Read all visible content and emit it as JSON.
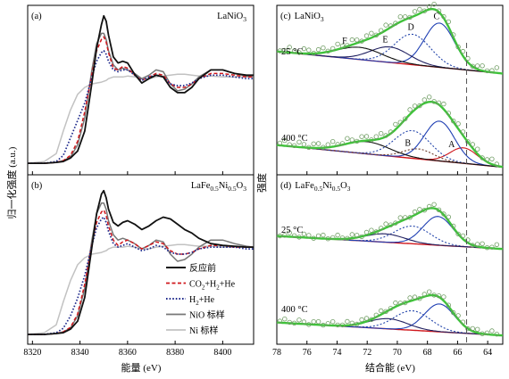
{
  "colors": {
    "fresh": "#111111",
    "co2": "#d0171c",
    "h2": "#1f2a8c",
    "nio": "#777777",
    "ni_std": "#c2c2c2",
    "fit_total": "#3fc23a",
    "baseline": "#d0171c",
    "peak_A": "#d0171c",
    "peak_B": "#6a3b2a",
    "peak_C": "#1f3fb3",
    "peak_D": "#2244aa",
    "peak_E": "#202060",
    "peak_F": "#111111",
    "exp_marker": "#6f9c63"
  },
  "left_ylabel": "归一化强度 (a.u.)",
  "right_ylabel": "强度",
  "chart_data": [
    {
      "type": "line",
      "panel": "(a)",
      "title": "LaNiO3",
      "title_base": "LaNiO",
      "title_sub": "3",
      "xlabel": "能量 (eV)",
      "xlim": [
        8318,
        8413
      ],
      "xticks": [
        "8320",
        "8340",
        "8360",
        "8380",
        "8400"
      ],
      "xtick_values": [
        8320,
        8340,
        8360,
        8380,
        8400
      ],
      "ylim": [
        0,
        1.8
      ],
      "x": [
        8318,
        8325,
        8330,
        8333,
        8336,
        8339,
        8342,
        8345,
        8347,
        8349,
        8350,
        8351,
        8352,
        8354,
        8356,
        8358,
        8360,
        8363,
        8366,
        8369,
        8372,
        8375,
        8378,
        8381,
        8384,
        8387,
        8390,
        8395,
        8400,
        8405,
        8410,
        8413
      ],
      "series": [
        {
          "key": "fresh",
          "values": [
            0.03,
            0.03,
            0.04,
            0.05,
            0.09,
            0.17,
            0.4,
            0.95,
            1.35,
            1.62,
            1.72,
            1.66,
            1.5,
            1.25,
            1.18,
            1.2,
            1.18,
            1.05,
            0.95,
            1.0,
            1.04,
            1.02,
            0.9,
            0.84,
            0.84,
            0.9,
            1.0,
            1.1,
            1.1,
            1.06,
            1.04,
            1.04
          ]
        },
        {
          "key": "co2",
          "values": [
            0.03,
            0.03,
            0.04,
            0.06,
            0.12,
            0.28,
            0.62,
            1.05,
            1.32,
            1.45,
            1.48,
            1.42,
            1.3,
            1.12,
            1.1,
            1.14,
            1.12,
            1.04,
            0.98,
            1.02,
            1.06,
            1.04,
            0.94,
            0.9,
            0.9,
            0.94,
            1.0,
            1.06,
            1.06,
            1.04,
            1.02,
            1.02
          ]
        },
        {
          "key": "h2",
          "values": [
            0.03,
            0.03,
            0.05,
            0.12,
            0.32,
            0.52,
            0.72,
            1.02,
            1.2,
            1.3,
            1.32,
            1.28,
            1.2,
            1.1,
            1.08,
            1.1,
            1.1,
            1.04,
            0.98,
            1.02,
            1.04,
            1.02,
            0.94,
            0.92,
            0.92,
            0.95,
            1.0,
            1.04,
            1.04,
            1.02,
            1.0,
            1.0
          ]
        },
        {
          "key": "nio",
          "values": [
            0.03,
            0.03,
            0.04,
            0.06,
            0.1,
            0.24,
            0.55,
            1.1,
            1.4,
            1.52,
            1.52,
            1.45,
            1.32,
            1.16,
            1.1,
            1.12,
            1.1,
            1.06,
            1.0,
            1.04,
            1.1,
            1.08,
            0.94,
            0.86,
            0.88,
            0.94,
            1.02,
            1.1,
            1.1,
            1.06,
            1.03,
            1.02
          ]
        },
        {
          "key": "ni_std",
          "values": [
            0.03,
            0.05,
            0.14,
            0.4,
            0.64,
            0.82,
            0.9,
            0.94,
            0.95,
            0.96,
            0.97,
            0.98,
            1.0,
            1.02,
            1.02,
            1.02,
            1.03,
            1.02,
            1.0,
            1.0,
            1.02,
            1.03,
            1.04,
            1.05,
            1.05,
            1.04,
            1.03,
            1.03,
            1.02,
            1.02,
            1.02,
            1.02
          ]
        }
      ]
    },
    {
      "type": "line",
      "panel": "(b)",
      "title": "LaFe0.5Ni0.5O3",
      "title_parts": [
        "LaFe",
        "0.5",
        "Ni",
        "0.5",
        "O",
        "3"
      ],
      "xlabel": "能量 (eV)",
      "xlim": [
        8318,
        8413
      ],
      "xticks": [
        "8320",
        "8340",
        "8360",
        "8380",
        "8400"
      ],
      "xtick_values": [
        8320,
        8340,
        8360,
        8380,
        8400
      ],
      "ylim": [
        0,
        1.8
      ],
      "x": [
        8318,
        8325,
        8330,
        8333,
        8336,
        8339,
        8342,
        8345,
        8347,
        8349,
        8350,
        8351,
        8352,
        8354,
        8356,
        8358,
        8360,
        8363,
        8366,
        8369,
        8372,
        8375,
        8378,
        8381,
        8384,
        8387,
        8390,
        8395,
        8400,
        8405,
        8410,
        8413
      ],
      "series": [
        {
          "key": "fresh",
          "values": [
            0.03,
            0.03,
            0.04,
            0.05,
            0.09,
            0.18,
            0.45,
            1.02,
            1.4,
            1.62,
            1.66,
            1.58,
            1.45,
            1.3,
            1.26,
            1.3,
            1.32,
            1.28,
            1.22,
            1.26,
            1.32,
            1.36,
            1.34,
            1.28,
            1.22,
            1.18,
            1.12,
            1.06,
            1.04,
            1.03,
            1.02,
            1.02
          ]
        },
        {
          "key": "co2",
          "values": [
            0.03,
            0.03,
            0.04,
            0.06,
            0.11,
            0.26,
            0.6,
            1.05,
            1.3,
            1.42,
            1.44,
            1.38,
            1.26,
            1.1,
            1.04,
            1.08,
            1.1,
            1.06,
            1.0,
            1.04,
            1.08,
            1.06,
            0.98,
            0.94,
            0.94,
            0.96,
            1.0,
            1.04,
            1.04,
            1.02,
            1.02,
            1.02
          ]
        },
        {
          "key": "h2",
          "values": [
            0.03,
            0.03,
            0.05,
            0.1,
            0.24,
            0.44,
            0.7,
            1.04,
            1.24,
            1.34,
            1.36,
            1.3,
            1.2,
            1.06,
            1.02,
            1.04,
            1.06,
            1.02,
            0.98,
            1.0,
            1.04,
            1.02,
            0.96,
            0.94,
            0.94,
            0.96,
            1.0,
            1.02,
            1.02,
            1.02,
            1.0,
            1.0
          ]
        },
        {
          "key": "nio",
          "values": [
            0.03,
            0.03,
            0.04,
            0.06,
            0.1,
            0.24,
            0.55,
            1.1,
            1.4,
            1.52,
            1.52,
            1.45,
            1.32,
            1.16,
            1.1,
            1.12,
            1.1,
            1.06,
            1.0,
            1.04,
            1.1,
            1.08,
            0.94,
            0.86,
            0.88,
            0.94,
            1.02,
            1.1,
            1.1,
            1.06,
            1.03,
            1.02
          ]
        },
        {
          "key": "ni_std",
          "values": [
            0.03,
            0.05,
            0.14,
            0.4,
            0.64,
            0.82,
            0.9,
            0.94,
            0.95,
            0.96,
            0.97,
            0.98,
            1.0,
            1.02,
            1.02,
            1.02,
            1.03,
            1.02,
            1.0,
            1.0,
            1.02,
            1.03,
            1.04,
            1.05,
            1.05,
            1.04,
            1.03,
            1.03,
            1.02,
            1.02,
            1.02,
            1.02
          ]
        }
      ],
      "legend": {
        "placement": "lower-right",
        "entries": [
          {
            "key": "fresh",
            "label": "反应前",
            "dash": "solid"
          },
          {
            "key": "co2",
            "label_parts": [
              "CO",
              "2",
              "+H",
              "2",
              "+He"
            ],
            "label": "CO2+H2+He",
            "dash": "dash"
          },
          {
            "key": "h2",
            "label_parts": [
              "H",
              "2",
              "+He"
            ],
            "label": "H2+He",
            "dash": "dot"
          },
          {
            "key": "nio",
            "label": "NiO 标样",
            "dash": "solid"
          },
          {
            "key": "ni_std",
            "label": "Ni 标样",
            "dash": "solid"
          }
        ]
      }
    },
    {
      "type": "line",
      "panel": "(c)",
      "title": "LaNiO3",
      "title_base": "LaNiO",
      "title_sub": "3",
      "xlabel": "结合能 (eV)",
      "xlim": [
        78,
        63
      ],
      "xticks": [
        "78",
        "76",
        "74",
        "72",
        "70",
        "68",
        "66",
        "64"
      ],
      "xtick_values": [
        78,
        76,
        74,
        72,
        70,
        68,
        66,
        64
      ],
      "reference_line_x": 65.4,
      "spectra": [
        {
          "label": "25 °C",
          "baseline": {
            "left": 0.28,
            "right": -0.12
          },
          "exp_offset": 0.05,
          "peaks": [
            {
              "name": "C",
              "center": 67.2,
              "height": 0.8,
              "sigma": 1.0
            },
            {
              "name": "D",
              "center": 69.0,
              "height": 0.55,
              "sigma": 1.2
            },
            {
              "name": "E",
              "center": 70.5,
              "height": 0.28,
              "sigma": 1.3
            },
            {
              "name": "F",
              "center": 72.5,
              "height": 0.22,
              "sigma": 1.5
            }
          ],
          "peak_labels": [
            {
              "name": "F",
              "x": 73.5
            },
            {
              "name": "E",
              "x": 70.8
            },
            {
              "name": "D",
              "x": 69.1
            },
            {
              "name": "C",
              "x": 67.4
            }
          ]
        },
        {
          "label": "400 °C",
          "baseline": {
            "left": 0.28,
            "right": -0.12
          },
          "exp_offset": 0.05,
          "peaks": [
            {
              "name": "A",
              "center": 65.6,
              "height": 0.28,
              "sigma": 0.9
            },
            {
              "name": "C",
              "center": 67.2,
              "height": 0.72,
              "sigma": 1.0
            },
            {
              "name": "D",
              "center": 69.0,
              "height": 0.5,
              "sigma": 1.2
            },
            {
              "name": "B",
              "center": 68.6,
              "height": 0.18,
              "sigma": 1.0
            },
            {
              "name": "F",
              "center": 72.0,
              "height": 0.22,
              "sigma": 1.5
            }
          ],
          "peak_labels": [
            {
              "name": "B",
              "x": 69.3
            },
            {
              "name": "A",
              "x": 66.4
            }
          ]
        }
      ]
    },
    {
      "type": "line",
      "panel": "(d)",
      "title": "LaFe0.5Ni0.5O3",
      "title_parts": [
        "LaFe",
        "0.5",
        "Ni",
        "0.5",
        "O",
        "3"
      ],
      "xlabel": "结合能 (eV)",
      "xlim": [
        78,
        63
      ],
      "xticks": [
        "78",
        "76",
        "74",
        "72",
        "70",
        "68",
        "66",
        "64"
      ],
      "xtick_values": [
        78,
        76,
        74,
        72,
        70,
        68,
        66,
        64
      ],
      "spectra": [
        {
          "label": "25 °C",
          "baseline": {
            "left": 0.2,
            "right": -0.08
          },
          "exp_offset": 0.04,
          "peaks": [
            {
              "name": "C",
              "center": 67.3,
              "height": 0.62,
              "sigma": 1.0
            },
            {
              "name": "D",
              "center": 69.0,
              "height": 0.38,
              "sigma": 1.2
            },
            {
              "name": "E",
              "center": 70.8,
              "height": 0.18,
              "sigma": 1.3
            }
          ],
          "peak_labels": []
        },
        {
          "label": "400 °C",
          "baseline": {
            "left": 0.2,
            "right": -0.08
          },
          "exp_offset": 0.04,
          "peaks": [
            {
              "name": "C",
              "center": 67.2,
              "height": 0.6,
              "sigma": 1.0
            },
            {
              "name": "D",
              "center": 69.0,
              "height": 0.42,
              "sigma": 1.2
            },
            {
              "name": "E",
              "center": 70.6,
              "height": 0.22,
              "sigma": 1.3
            }
          ],
          "peak_labels": []
        }
      ]
    }
  ]
}
